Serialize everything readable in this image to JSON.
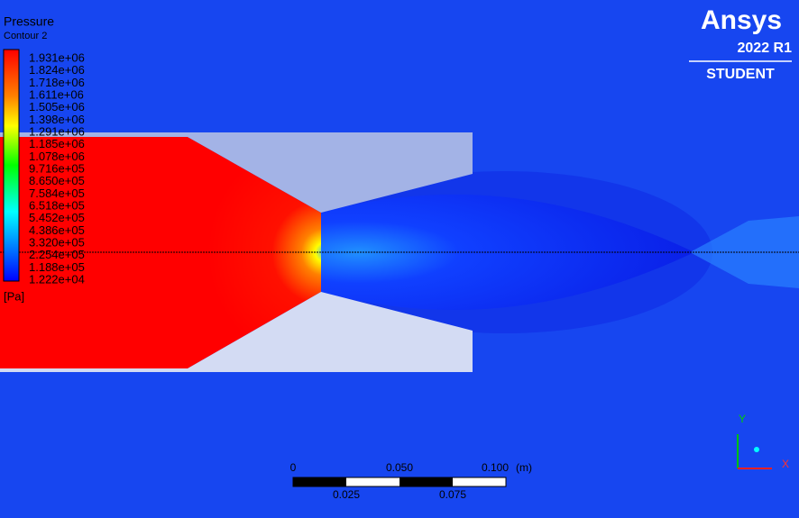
{
  "legend": {
    "title": "Pressure",
    "subtitle": "Contour 2",
    "levels": [
      "1.931e+06",
      "1.824e+06",
      "1.718e+06",
      "1.611e+06",
      "1.505e+06",
      "1.398e+06",
      "1.291e+06",
      "1.185e+06",
      "1.078e+06",
      "9.716e+05",
      "8.650e+05",
      "7.584e+05",
      "6.518e+05",
      "5.452e+05",
      "4.386e+05",
      "3.320e+05",
      "2.254e+05",
      "1.188e+05",
      "1.222e+04"
    ],
    "unit": "[Pa]"
  },
  "logo": {
    "brand": "Ansys",
    "version": "2022 R1",
    "edition": "STUDENT"
  },
  "scale_bar": {
    "top_labels": [
      "0",
      "0.050",
      "0.100"
    ],
    "unit": "(m)",
    "bottom_labels": [
      "0.025",
      "0.075"
    ]
  },
  "triad": {
    "y": "Y",
    "x": "X"
  }
}
